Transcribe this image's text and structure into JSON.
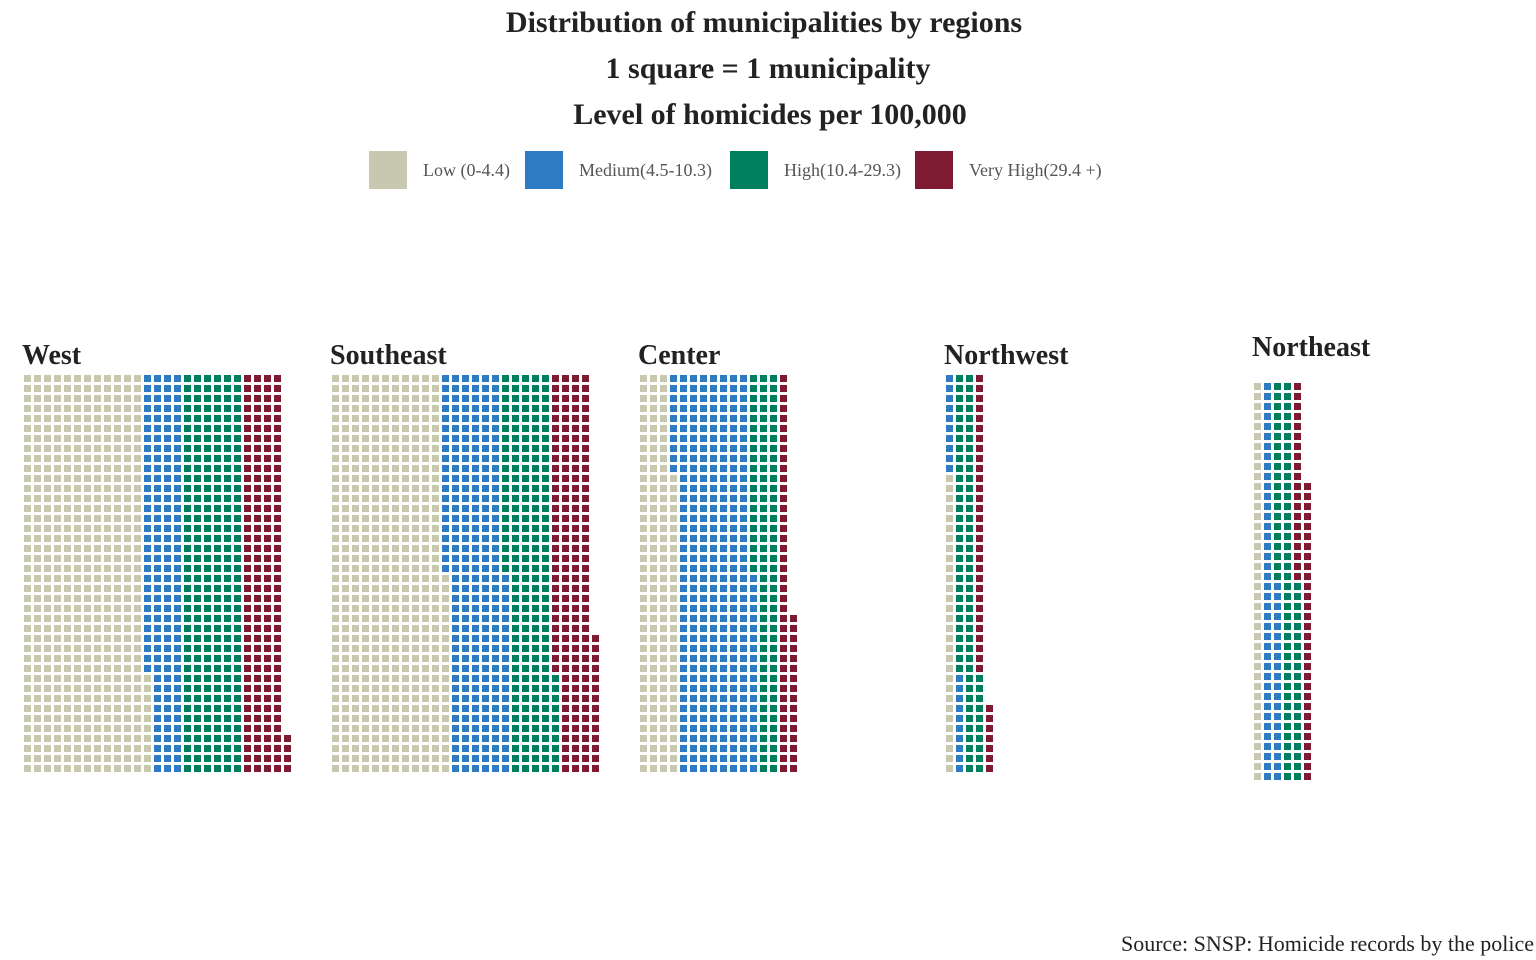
{
  "chart_data": {
    "type": "waffle",
    "title": "Distribution of municipalities by regions",
    "subtitle": "1 square = 1 municipality",
    "legend_title": "Level of homicides per 100,000",
    "source": "Source: SNSP: Homicide records by the police",
    "categories": [
      "West",
      "Southeast",
      "Center",
      "Northwest",
      "Northeast"
    ],
    "series": [
      {
        "name": "Low (0-4.4)",
        "color": "#c8c8b0",
        "values": [
          490,
          460,
          150,
          30,
          40
        ]
      },
      {
        "name": "Medium(4.5-10.3)",
        "color": "#2e7bc4",
        "values": [
          150,
          240,
          310,
          20,
          60
        ]
      },
      {
        "name": "High(10.4-29.3)",
        "color": "#007f5f",
        "values": [
          240,
          190,
          100,
          80,
          80
        ]
      },
      {
        "name": "Very High(29.4 +)",
        "color": "#7f1a33",
        "values": [
          164,
          164,
          56,
          37,
          50
        ]
      }
    ],
    "rows": 40
  }
}
